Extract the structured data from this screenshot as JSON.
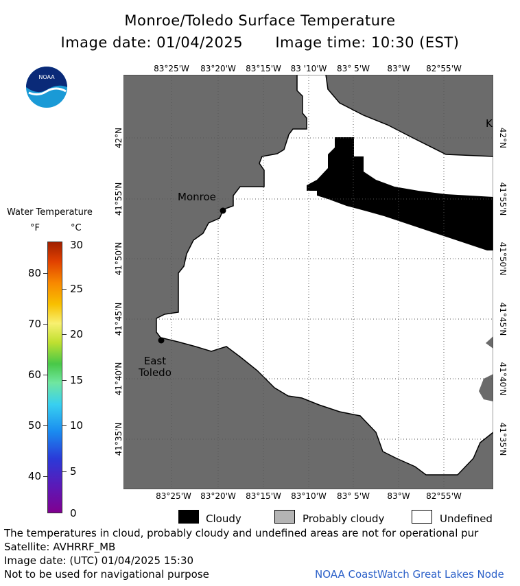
{
  "title": "Monroe/Toledo Surface Temperature",
  "image_date": "Image date: 01/04/2025",
  "image_time": "Image time: 10:30 (EST)",
  "logo_text": "NOAA",
  "map": {
    "lon_labels": [
      "83°25'W",
      "83°20'W",
      "83°15'W",
      "83 '10'W",
      "83° 5'W",
      "83°W",
      "82°55'W"
    ],
    "lon_labels_bottom": [
      "83°25'W",
      "83°20'W",
      "83°15'W",
      "83°10'W",
      "83° 5'W",
      "83°W",
      "82°55'W"
    ],
    "lat_labels_left": [
      "42°N",
      "41°55'N",
      "41°50'N",
      "41°45'N",
      "41°40'N",
      "41°35'N"
    ],
    "lat_labels_right": [
      "42°N",
      "41°55'N",
      "41°50'N",
      "41°45'N",
      "41°40'N",
      "41°35'N"
    ],
    "places": {
      "monroe": "Monroe",
      "east_toledo": "East\nToledo",
      "edge_k": "K"
    },
    "colors": {
      "land": "#6b6b6b",
      "cloud": "#000000",
      "undefined": "#ffffff",
      "grid": "#555555"
    }
  },
  "legend": {
    "title": "Water Temperature",
    "unit_f": "°F",
    "unit_c": "°C",
    "f_ticks": [
      "80",
      "70",
      "60",
      "50",
      "40"
    ],
    "c_ticks": [
      "30",
      "25",
      "20",
      "15",
      "10",
      "5",
      "0"
    ]
  },
  "key": {
    "cloudy": "Cloudy",
    "probably_cloudy": "Probably cloudy",
    "undefined": "Undefined",
    "cloudy_color": "#000000",
    "probably_cloudy_color": "#b4b4b4",
    "undefined_color": "#ffffff"
  },
  "footer": {
    "note": "The temperatures in cloud, probably cloudy and undefined areas are not for operational pur",
    "satellite": "Satellite: AVHRRF_MB",
    "utc_date": "Image date: (UTC) 01/04/2025  15:30",
    "warning": "Not to be used for navigational purpose",
    "credit": "NOAA CoastWatch Great Lakes Node"
  }
}
